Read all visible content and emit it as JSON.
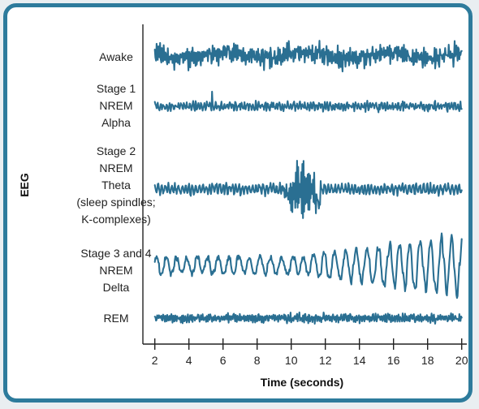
{
  "chart_data": {
    "type": "line",
    "xlabel": "Time (seconds)",
    "ylabel": "EEG",
    "xlim": [
      1.3,
      20.3
    ],
    "x_ticks": [
      "2",
      "4",
      "6",
      "8",
      "10",
      "12",
      "14",
      "16",
      "18",
      "20"
    ],
    "trace_span": [
      2,
      20
    ],
    "grid": false,
    "legend": "none",
    "color": "#2a6f92",
    "series": [
      {
        "name": "Awake",
        "label_lines": [
          "Awake"
        ],
        "amplitude": 0.45,
        "frequency_hz": 9,
        "pattern": "fast low-amplitude"
      },
      {
        "name": "Stage 1 NREM Alpha",
        "label_lines": [
          "Stage 1",
          "NREM",
          "Alpha"
        ],
        "amplitude": 0.25,
        "frequency_hz": 6,
        "pattern": "small irregular"
      },
      {
        "name": "Stage 2 NREM Theta (sleep spindles; K-complexes)",
        "label_lines": [
          "Stage 2",
          "NREM",
          "Theta",
          "(sleep spindles;",
          "K-complexes)"
        ],
        "amplitude": 0.3,
        "frequency_hz": 5,
        "pattern": "theta with sleep spindle burst",
        "spindle_window": [
          9.5,
          11.8
        ]
      },
      {
        "name": "Stage 3 and 4 NREM Delta",
        "label_lines": [
          "Stage 3 and 4",
          "NREM",
          "Delta"
        ],
        "amplitude": 1.0,
        "frequency_hz": 1.5,
        "pattern": "slow high-amplitude delta waves",
        "growth_from": 10
      },
      {
        "name": "REM",
        "label_lines": [
          "REM"
        ],
        "amplitude": 0.25,
        "frequency_hz": 8,
        "pattern": "low-amplitude mixed frequency"
      }
    ]
  }
}
